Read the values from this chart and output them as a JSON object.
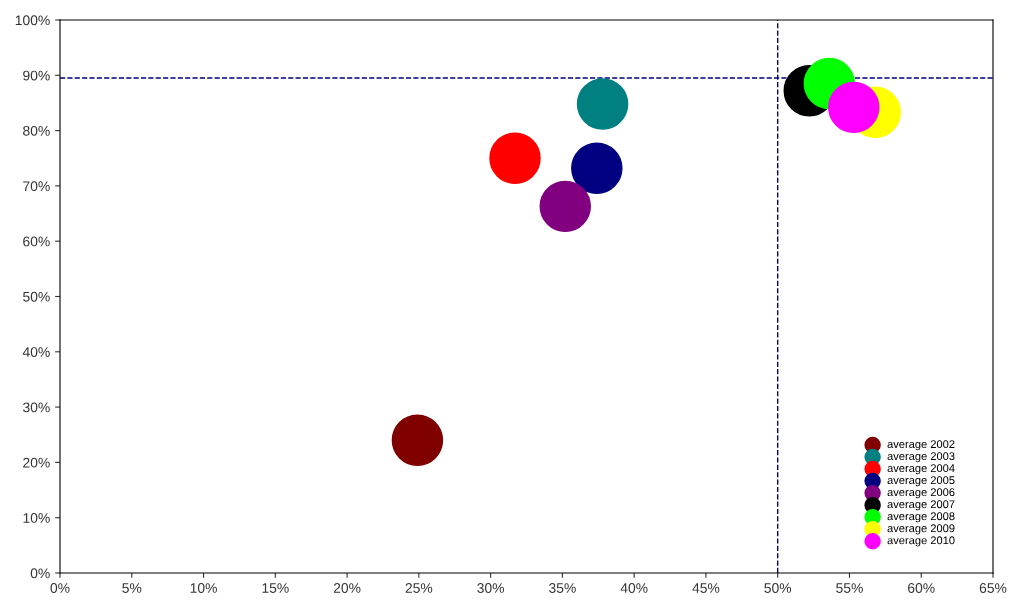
{
  "chart_data": {
    "type": "scatter",
    "marker": "circle",
    "legend": "bottom right",
    "grid": false,
    "xlim": [
      0,
      65
    ],
    "xticks": [
      {
        "value": 0,
        "label": "0%"
      },
      {
        "value": 5,
        "label": "5%"
      },
      {
        "value": 10,
        "label": "10%"
      },
      {
        "value": 15,
        "label": "15%"
      },
      {
        "value": 20,
        "label": "20%"
      },
      {
        "value": 25,
        "label": "25%"
      },
      {
        "value": 30,
        "label": "30%"
      },
      {
        "value": 35,
        "label": "35%"
      },
      {
        "value": 40,
        "label": "40%"
      },
      {
        "value": 45,
        "label": "45%"
      },
      {
        "value": 50,
        "label": "50%"
      },
      {
        "value": 55,
        "label": "55%"
      },
      {
        "value": 60,
        "label": "60%"
      },
      {
        "value": 65,
        "label": "65%"
      }
    ],
    "ylim": [
      0,
      100
    ],
    "yticks": [
      {
        "value": 0,
        "label": "0%"
      },
      {
        "value": 10,
        "label": "10%"
      },
      {
        "value": 20,
        "label": "20%"
      },
      {
        "value": 30,
        "label": "30%"
      },
      {
        "value": 40,
        "label": "40%"
      },
      {
        "value": 50,
        "label": "50%"
      },
      {
        "value": 60,
        "label": "60%"
      },
      {
        "value": 70,
        "label": "70%"
      },
      {
        "value": 80,
        "label": "80%"
      },
      {
        "value": 90,
        "label": "90%"
      },
      {
        "value": 100,
        "label": "100%"
      }
    ],
    "ref_lines": [
      {
        "axis": "x",
        "value": 50,
        "color": "#000080",
        "line_style": "dashed"
      },
      {
        "axis": "y",
        "value": 89.5,
        "color": "#000080",
        "line_style": "dashed"
      }
    ],
    "series": [
      {
        "name": "average 2002",
        "color": "#800000",
        "x": [
          24.9
        ],
        "values": [
          24
        ]
      },
      {
        "name": "average 2003",
        "color": "#008080",
        "x": [
          37.8
        ],
        "values": [
          84.8
        ]
      },
      {
        "name": "average 2004",
        "color": "#ff0000",
        "x": [
          31.7
        ],
        "values": [
          75
        ]
      },
      {
        "name": "average 2005",
        "color": "#000080",
        "x": [
          37.4
        ],
        "values": [
          73.2
        ]
      },
      {
        "name": "average 2006",
        "color": "#800080",
        "x": [
          35.2
        ],
        "values": [
          66.3
        ]
      },
      {
        "name": "average 2007",
        "color": "#000000",
        "x": [
          52.2
        ],
        "values": [
          87.2
        ]
      },
      {
        "name": "average 2008",
        "color": "#00ff00",
        "x": [
          53.6
        ],
        "values": [
          88.5
        ]
      },
      {
        "name": "average 2009",
        "color": "#ffff00",
        "x": [
          56.8
        ],
        "values": [
          83.3
        ]
      },
      {
        "name": "average 2010",
        "color": "#ff00ff",
        "x": [
          55.3
        ],
        "values": [
          84.2
        ]
      }
    ]
  }
}
